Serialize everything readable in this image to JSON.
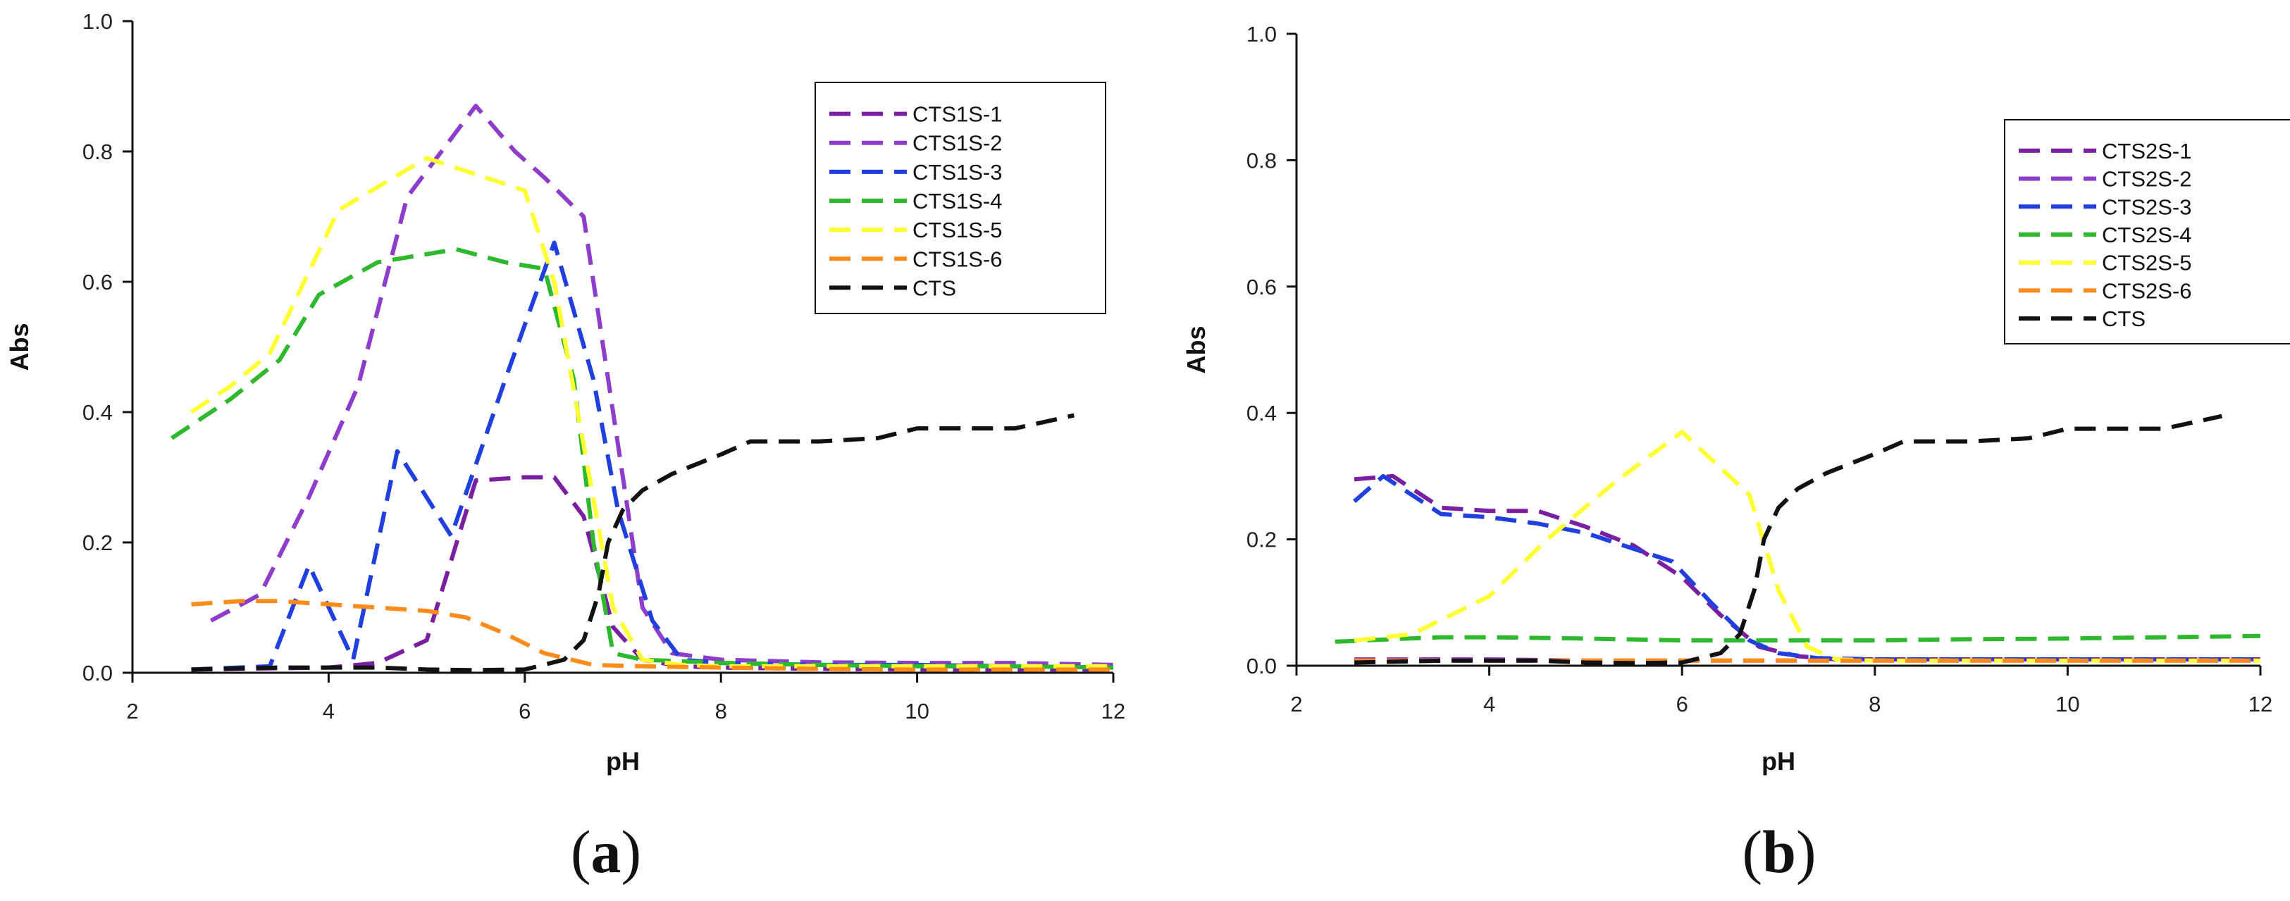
{
  "chart_data": [
    {
      "type": "line",
      "panel_label": "a",
      "xlabel": "pH",
      "ylabel": "Abs",
      "xlim": [
        2,
        12
      ],
      "ylim": [
        0,
        1.0
      ],
      "xticks": [
        "2",
        "4",
        "6",
        "8",
        "10",
        "12"
      ],
      "yticks": [
        "0.0",
        "0.2",
        "0.4",
        "0.6",
        "0.8",
        "1.0"
      ],
      "grid": false,
      "legend_position": "top-right",
      "line_style": "dashed",
      "series": [
        {
          "name": "CTS1S-1",
          "color": "#7B1FA2",
          "x": [
            2.6,
            3.5,
            4.0,
            4.5,
            5.0,
            5.5,
            6.0,
            6.3,
            6.6,
            6.9,
            7.2,
            7.6,
            8.0,
            9.0,
            10.0,
            11.0,
            12.0
          ],
          "y": [
            0.005,
            0.007,
            0.008,
            0.015,
            0.05,
            0.295,
            0.3,
            0.3,
            0.24,
            0.07,
            0.02,
            0.01,
            0.008,
            0.006,
            0.005,
            0.005,
            0.005
          ]
        },
        {
          "name": "CTS1S-2",
          "color": "#8E3CCB",
          "x": [
            2.8,
            3.3,
            3.8,
            4.3,
            4.8,
            5.5,
            5.9,
            6.2,
            6.6,
            6.9,
            7.2,
            7.5,
            8.0,
            9.0,
            10.0,
            11.0,
            12.0
          ],
          "y": [
            0.08,
            0.12,
            0.27,
            0.44,
            0.73,
            0.87,
            0.8,
            0.76,
            0.7,
            0.4,
            0.1,
            0.03,
            0.02,
            0.016,
            0.015,
            0.015,
            0.012
          ]
        },
        {
          "name": "CTS1S-3",
          "color": "#1F3FE0",
          "x": [
            2.6,
            3.4,
            3.8,
            4.25,
            4.7,
            5.25,
            5.8,
            6.3,
            6.7,
            6.95,
            7.3,
            7.6,
            8.0,
            9.0,
            10.0,
            11.0,
            12.0
          ],
          "y": [
            0.005,
            0.01,
            0.165,
            0.02,
            0.34,
            0.21,
            0.45,
            0.66,
            0.45,
            0.25,
            0.08,
            0.02,
            0.015,
            0.012,
            0.012,
            0.01,
            0.008
          ]
        },
        {
          "name": "CTS1S-4",
          "color": "#2DB82D",
          "x": [
            2.4,
            3.0,
            3.5,
            3.9,
            4.5,
            5.3,
            5.8,
            6.2,
            6.5,
            6.7,
            6.9,
            7.2,
            8.0,
            9.0,
            10.0,
            11.0,
            12.0
          ],
          "y": [
            0.36,
            0.42,
            0.48,
            0.58,
            0.63,
            0.65,
            0.63,
            0.62,
            0.45,
            0.2,
            0.03,
            0.02,
            0.015,
            0.012,
            0.01,
            0.01,
            0.008
          ]
        },
        {
          "name": "CTS1S-5",
          "color": "#FFFF33",
          "x": [
            2.6,
            3.0,
            3.4,
            4.1,
            5.0,
            5.6,
            6.0,
            6.3,
            6.6,
            6.9,
            7.2,
            7.6,
            8.0,
            9.0,
            10.0,
            11.0,
            12.0
          ],
          "y": [
            0.4,
            0.44,
            0.49,
            0.71,
            0.79,
            0.76,
            0.74,
            0.6,
            0.35,
            0.1,
            0.02,
            0.012,
            0.01,
            0.01,
            0.01,
            0.01,
            0.01
          ]
        },
        {
          "name": "CTS1S-6",
          "color": "#FF8C1A",
          "x": [
            2.6,
            3.1,
            3.5,
            4.0,
            4.5,
            5.0,
            5.4,
            5.8,
            6.2,
            6.7,
            7.2,
            8.0,
            9.0,
            10.0,
            11.0,
            12.0
          ],
          "y": [
            0.105,
            0.11,
            0.11,
            0.105,
            0.1,
            0.095,
            0.085,
            0.06,
            0.03,
            0.012,
            0.01,
            0.008,
            0.006,
            0.005,
            0.005,
            0.005
          ]
        },
        {
          "name": "CTS",
          "color": "#111111",
          "x": [
            2.6,
            3.5,
            4.0,
            4.5,
            5.0,
            5.5,
            6.0,
            6.4,
            6.6,
            6.75,
            6.85,
            7.0,
            7.2,
            7.5,
            8.0,
            8.3,
            9.0,
            9.6,
            10.0,
            11.0,
            11.6
          ],
          "y": [
            0.005,
            0.008,
            0.008,
            0.008,
            0.005,
            0.004,
            0.005,
            0.02,
            0.05,
            0.12,
            0.2,
            0.25,
            0.28,
            0.305,
            0.335,
            0.355,
            0.355,
            0.36,
            0.375,
            0.375,
            0.395
          ]
        }
      ]
    },
    {
      "type": "line",
      "panel_label": "b",
      "xlabel": "pH",
      "ylabel": "Abs",
      "xlim": [
        2,
        12
      ],
      "ylim": [
        0,
        1.0
      ],
      "xticks": [
        "2",
        "4",
        "6",
        "8",
        "10",
        "12"
      ],
      "yticks": [
        "0.0",
        "0.2",
        "0.4",
        "0.6",
        "0.8",
        "1.0"
      ],
      "grid": false,
      "legend_position": "top-right",
      "line_style": "dashed",
      "series": [
        {
          "name": "CTS2S-1",
          "color": "#7B1FA2",
          "x": [
            2.6,
            3.0,
            3.5,
            4.0,
            4.5,
            5.0,
            5.5,
            6.0,
            6.4,
            6.8,
            7.2,
            7.6,
            8.0,
            9.0,
            10.0,
            11.0,
            12.0
          ],
          "y": [
            0.295,
            0.3,
            0.25,
            0.245,
            0.245,
            0.22,
            0.19,
            0.14,
            0.08,
            0.03,
            0.015,
            0.01,
            0.01,
            0.01,
            0.01,
            0.01,
            0.01
          ]
        },
        {
          "name": "CTS2S-2",
          "color": "#8E3CCB",
          "x": [
            2.6,
            3.5,
            4.0,
            5.0,
            6.0,
            7.0,
            8.0,
            9.0,
            10.0,
            11.0,
            12.0
          ],
          "y": [
            0.01,
            0.01,
            0.01,
            0.008,
            0.008,
            0.008,
            0.008,
            0.008,
            0.008,
            0.008,
            0.008
          ]
        },
        {
          "name": "CTS2S-3",
          "color": "#1F3FE0",
          "x": [
            2.6,
            2.9,
            3.5,
            4.0,
            4.5,
            5.0,
            5.5,
            5.9,
            6.3,
            6.7,
            7.0,
            7.4,
            8.0,
            9.0,
            10.0,
            11.0,
            12.0
          ],
          "y": [
            0.26,
            0.3,
            0.24,
            0.235,
            0.225,
            0.21,
            0.185,
            0.165,
            0.1,
            0.04,
            0.02,
            0.012,
            0.01,
            0.01,
            0.01,
            0.01,
            0.01
          ]
        },
        {
          "name": "CTS2S-4",
          "color": "#2DB82D",
          "x": [
            2.4,
            3.0,
            3.5,
            4.0,
            5.0,
            6.0,
            7.0,
            8.0,
            9.0,
            10.0,
            11.0,
            12.0
          ],
          "y": [
            0.038,
            0.042,
            0.045,
            0.045,
            0.043,
            0.04,
            0.04,
            0.04,
            0.042,
            0.043,
            0.045,
            0.047
          ]
        },
        {
          "name": "CTS2S-5",
          "color": "#FFFF33",
          "x": [
            2.6,
            3.2,
            4.0,
            4.6,
            5.3,
            6.0,
            6.7,
            7.0,
            7.3,
            7.6,
            8.0,
            9.0,
            10.0,
            11.0,
            12.0
          ],
          "y": [
            0.04,
            0.05,
            0.11,
            0.2,
            0.29,
            0.37,
            0.27,
            0.12,
            0.03,
            0.01,
            0.008,
            0.008,
            0.008,
            0.008,
            0.008
          ]
        },
        {
          "name": "CTS2S-6",
          "color": "#FF8C1A",
          "x": [
            2.6,
            3.5,
            4.0,
            5.0,
            6.0,
            7.0,
            8.0,
            9.0,
            10.0,
            11.0,
            12.0
          ],
          "y": [
            0.008,
            0.008,
            0.008,
            0.008,
            0.008,
            0.008,
            0.008,
            0.008,
            0.008,
            0.008,
            0.008
          ]
        },
        {
          "name": "CTS",
          "color": "#111111",
          "x": [
            2.6,
            3.5,
            4.0,
            4.5,
            5.0,
            5.5,
            6.0,
            6.4,
            6.6,
            6.75,
            6.85,
            7.0,
            7.2,
            7.5,
            8.0,
            8.3,
            9.0,
            9.6,
            10.0,
            11.0,
            11.6
          ],
          "y": [
            0.005,
            0.008,
            0.008,
            0.008,
            0.005,
            0.004,
            0.005,
            0.02,
            0.05,
            0.12,
            0.2,
            0.25,
            0.28,
            0.305,
            0.335,
            0.355,
            0.355,
            0.36,
            0.375,
            0.375,
            0.395
          ]
        }
      ]
    }
  ]
}
